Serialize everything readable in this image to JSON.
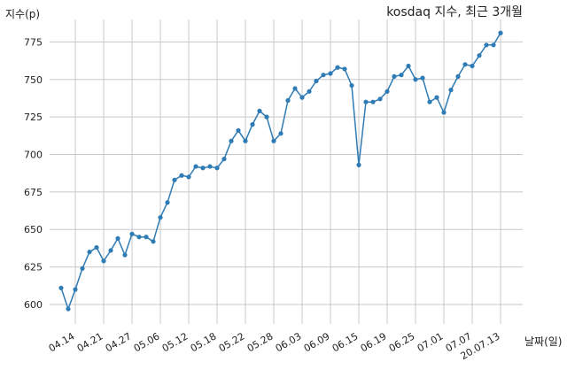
{
  "chart_data": {
    "type": "line",
    "title": "kosdaq 지수, 최근 3개월",
    "xlabel": "날짜(일)",
    "ylabel": "지수(p)",
    "ylim": [
      587,
      790
    ],
    "yticks": [
      600,
      625,
      650,
      675,
      700,
      725,
      750,
      775
    ],
    "xtick_labels": [
      "04.14",
      "04.21",
      "04.27",
      "05.06",
      "05.12",
      "05.18",
      "05.22",
      "05.28",
      "06.03",
      "06.09",
      "06.15",
      "06.19",
      "06.25",
      "07.01",
      "07.07",
      "20.07.13"
    ],
    "xtick_index": [
      2,
      6,
      10,
      14,
      18,
      22,
      26,
      30,
      34,
      38,
      42,
      46,
      50,
      54,
      58,
      62
    ],
    "grid": true,
    "line_color": "#2e7bb5",
    "series": [
      {
        "values": [
          611,
          597,
          610,
          624,
          635,
          638,
          629,
          636,
          644,
          633,
          647,
          645,
          645,
          642,
          658,
          668,
          683,
          686,
          685,
          692,
          691,
          692,
          691,
          697,
          709,
          716,
          709,
          720,
          729,
          725,
          709,
          714,
          736,
          744,
          738,
          742,
          749,
          753,
          754,
          758,
          757,
          746,
          693,
          735,
          735,
          737,
          742,
          752,
          753,
          759,
          750,
          751,
          735,
          738,
          728,
          743,
          752,
          760,
          759,
          766,
          773,
          773,
          781
        ]
      }
    ]
  }
}
